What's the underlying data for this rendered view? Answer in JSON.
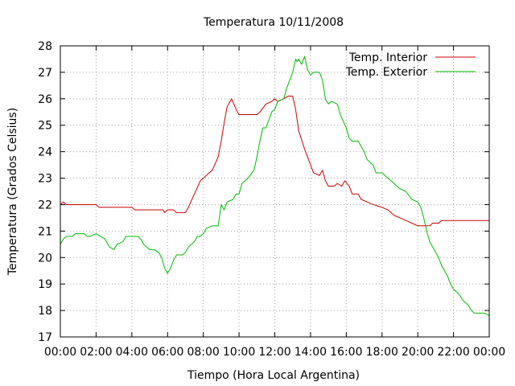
{
  "chart_data": {
    "type": "line",
    "title": "Temperatura 10/11/2008",
    "xlabel": "Tiempo (Hora Local Argentina)",
    "ylabel": "Temperatura (Grados Celsius)",
    "xlim": [
      "00:00",
      "24:00"
    ],
    "ylim": [
      17,
      28
    ],
    "x_tick_labels": [
      "00:00",
      "02:00",
      "04:00",
      "06:00",
      "08:00",
      "10:00",
      "12:00",
      "14:00",
      "16:00",
      "18:00",
      "20:00",
      "22:00",
      "00:00"
    ],
    "y_ticks": [
      17,
      18,
      19,
      20,
      21,
      22,
      23,
      24,
      25,
      26,
      27,
      28
    ],
    "grid": true,
    "legend_position": "top-right",
    "series": [
      {
        "name": "Temp. Interior",
        "color": "#cc0000",
        "points": [
          [
            "00:00",
            22.0
          ],
          [
            "00:10",
            22.1
          ],
          [
            "00:20",
            22.0
          ],
          [
            "01:00",
            22.0
          ],
          [
            "02:00",
            22.0
          ],
          [
            "02:10",
            21.9
          ],
          [
            "03:00",
            21.9
          ],
          [
            "04:00",
            21.9
          ],
          [
            "04:10",
            21.8
          ],
          [
            "05:00",
            21.8
          ],
          [
            "05:45",
            21.8
          ],
          [
            "05:50",
            21.7
          ],
          [
            "06:00",
            21.8
          ],
          [
            "06:20",
            21.8
          ],
          [
            "06:30",
            21.7
          ],
          [
            "07:00",
            21.7
          ],
          [
            "07:10",
            21.9
          ],
          [
            "07:30",
            22.4
          ],
          [
            "07:50",
            22.9
          ],
          [
            "08:10",
            23.1
          ],
          [
            "08:30",
            23.3
          ],
          [
            "08:50",
            23.8
          ],
          [
            "09:00",
            24.4
          ],
          [
            "09:10",
            25.1
          ],
          [
            "09:20",
            25.7
          ],
          [
            "09:35",
            26.0
          ],
          [
            "09:50",
            25.6
          ],
          [
            "10:00",
            25.4
          ],
          [
            "10:30",
            25.4
          ],
          [
            "11:00",
            25.4
          ],
          [
            "11:10",
            25.5
          ],
          [
            "11:30",
            25.8
          ],
          [
            "11:50",
            25.9
          ],
          [
            "12:00",
            26.0
          ],
          [
            "12:10",
            25.9
          ],
          [
            "12:30",
            26.0
          ],
          [
            "12:45",
            26.1
          ],
          [
            "13:00",
            26.1
          ],
          [
            "13:10",
            25.6
          ],
          [
            "13:20",
            24.8
          ],
          [
            "13:40",
            24.1
          ],
          [
            "14:00",
            23.5
          ],
          [
            "14:10",
            23.2
          ],
          [
            "14:30",
            23.1
          ],
          [
            "14:40",
            23.3
          ],
          [
            "14:50",
            22.9
          ],
          [
            "15:00",
            22.7
          ],
          [
            "15:20",
            22.7
          ],
          [
            "15:30",
            22.8
          ],
          [
            "15:45",
            22.7
          ],
          [
            "15:55",
            22.9
          ],
          [
            "16:10",
            22.7
          ],
          [
            "16:20",
            22.4
          ],
          [
            "16:40",
            22.4
          ],
          [
            "16:50",
            22.2
          ],
          [
            "17:10",
            22.1
          ],
          [
            "17:30",
            22.0
          ],
          [
            "18:00",
            21.9
          ],
          [
            "18:20",
            21.8
          ],
          [
            "18:40",
            21.6
          ],
          [
            "19:00",
            21.5
          ],
          [
            "19:20",
            21.4
          ],
          [
            "19:40",
            21.3
          ],
          [
            "20:00",
            21.2
          ],
          [
            "20:20",
            21.2
          ],
          [
            "20:40",
            21.2
          ],
          [
            "20:50",
            21.3
          ],
          [
            "21:10",
            21.3
          ],
          [
            "21:20",
            21.4
          ],
          [
            "22:00",
            21.4
          ],
          [
            "23:00",
            21.4
          ],
          [
            "24:00",
            21.4
          ]
        ]
      },
      {
        "name": "Temp. Exterior",
        "color": "#00bb00",
        "points": [
          [
            "00:00",
            20.5
          ],
          [
            "00:10",
            20.7
          ],
          [
            "00:20",
            20.8
          ],
          [
            "00:40",
            20.8
          ],
          [
            "00:50",
            20.9
          ],
          [
            "01:20",
            20.9
          ],
          [
            "01:30",
            20.8
          ],
          [
            "01:40",
            20.8
          ],
          [
            "02:00",
            20.9
          ],
          [
            "02:15",
            20.8
          ],
          [
            "02:30",
            20.7
          ],
          [
            "02:45",
            20.4
          ],
          [
            "03:00",
            20.3
          ],
          [
            "03:10",
            20.5
          ],
          [
            "03:30",
            20.6
          ],
          [
            "03:40",
            20.8
          ],
          [
            "04:00",
            20.8
          ],
          [
            "04:20",
            20.8
          ],
          [
            "04:30",
            20.7
          ],
          [
            "04:40",
            20.5
          ],
          [
            "04:50",
            20.4
          ],
          [
            "05:00",
            20.3
          ],
          [
            "05:15",
            20.3
          ],
          [
            "05:30",
            20.2
          ],
          [
            "05:40",
            20.0
          ],
          [
            "05:50",
            19.6
          ],
          [
            "06:00",
            19.4
          ],
          [
            "06:10",
            19.6
          ],
          [
            "06:20",
            19.9
          ],
          [
            "06:30",
            20.1
          ],
          [
            "06:50",
            20.1
          ],
          [
            "07:00",
            20.2
          ],
          [
            "07:10",
            20.4
          ],
          [
            "07:30",
            20.6
          ],
          [
            "07:40",
            20.8
          ],
          [
            "07:50",
            20.8
          ],
          [
            "08:00",
            20.9
          ],
          [
            "08:10",
            21.1
          ],
          [
            "08:30",
            21.2
          ],
          [
            "08:50",
            21.2
          ],
          [
            "09:00",
            22.0
          ],
          [
            "09:10",
            21.8
          ],
          [
            "09:20",
            22.1
          ],
          [
            "09:40",
            22.2
          ],
          [
            "09:50",
            22.4
          ],
          [
            "10:00",
            22.4
          ],
          [
            "10:10",
            22.8
          ],
          [
            "10:30",
            23.0
          ],
          [
            "10:50",
            23.3
          ],
          [
            "11:00",
            23.8
          ],
          [
            "11:10",
            24.4
          ],
          [
            "11:20",
            24.9
          ],
          [
            "11:30",
            24.9
          ],
          [
            "11:40",
            25.2
          ],
          [
            "11:50",
            25.5
          ],
          [
            "12:00",
            25.6
          ],
          [
            "12:10",
            25.9
          ],
          [
            "12:30",
            26.0
          ],
          [
            "12:40",
            26.4
          ],
          [
            "12:50",
            26.7
          ],
          [
            "13:00",
            27.0
          ],
          [
            "13:10",
            27.5
          ],
          [
            "13:15",
            27.4
          ],
          [
            "13:20",
            27.5
          ],
          [
            "13:30",
            27.3
          ],
          [
            "13:40",
            27.6
          ],
          [
            "13:50",
            27.1
          ],
          [
            "14:00",
            26.9
          ],
          [
            "14:10",
            27.0
          ],
          [
            "14:30",
            27.0
          ],
          [
            "14:40",
            26.7
          ],
          [
            "14:50",
            26.0
          ],
          [
            "15:00",
            25.8
          ],
          [
            "15:10",
            25.9
          ],
          [
            "15:30",
            25.8
          ],
          [
            "15:40",
            25.4
          ],
          [
            "16:00",
            24.9
          ],
          [
            "16:10",
            24.5
          ],
          [
            "16:20",
            24.4
          ],
          [
            "16:40",
            24.4
          ],
          [
            "16:50",
            24.2
          ],
          [
            "17:00",
            24.0
          ],
          [
            "17:10",
            23.7
          ],
          [
            "17:30",
            23.5
          ],
          [
            "17:40",
            23.2
          ],
          [
            "18:00",
            23.2
          ],
          [
            "18:20",
            23.0
          ],
          [
            "18:40",
            22.8
          ],
          [
            "19:00",
            22.6
          ],
          [
            "19:20",
            22.5
          ],
          [
            "19:40",
            22.2
          ],
          [
            "20:00",
            22.1
          ],
          [
            "20:10",
            21.9
          ],
          [
            "20:20",
            21.5
          ],
          [
            "20:30",
            21.0
          ],
          [
            "20:40",
            20.6
          ],
          [
            "20:50",
            20.4
          ],
          [
            "21:00",
            20.2
          ],
          [
            "21:10",
            20.0
          ],
          [
            "21:20",
            19.7
          ],
          [
            "21:30",
            19.5
          ],
          [
            "21:40",
            19.3
          ],
          [
            "21:50",
            19.0
          ],
          [
            "22:00",
            18.8
          ],
          [
            "22:10",
            18.7
          ],
          [
            "22:20",
            18.6
          ],
          [
            "22:30",
            18.4
          ],
          [
            "22:40",
            18.3
          ],
          [
            "22:50",
            18.2
          ],
          [
            "23:00",
            18.0
          ],
          [
            "23:10",
            17.9
          ],
          [
            "23:30",
            17.9
          ],
          [
            "23:45",
            17.9
          ],
          [
            "24:00",
            17.8
          ]
        ]
      }
    ]
  }
}
